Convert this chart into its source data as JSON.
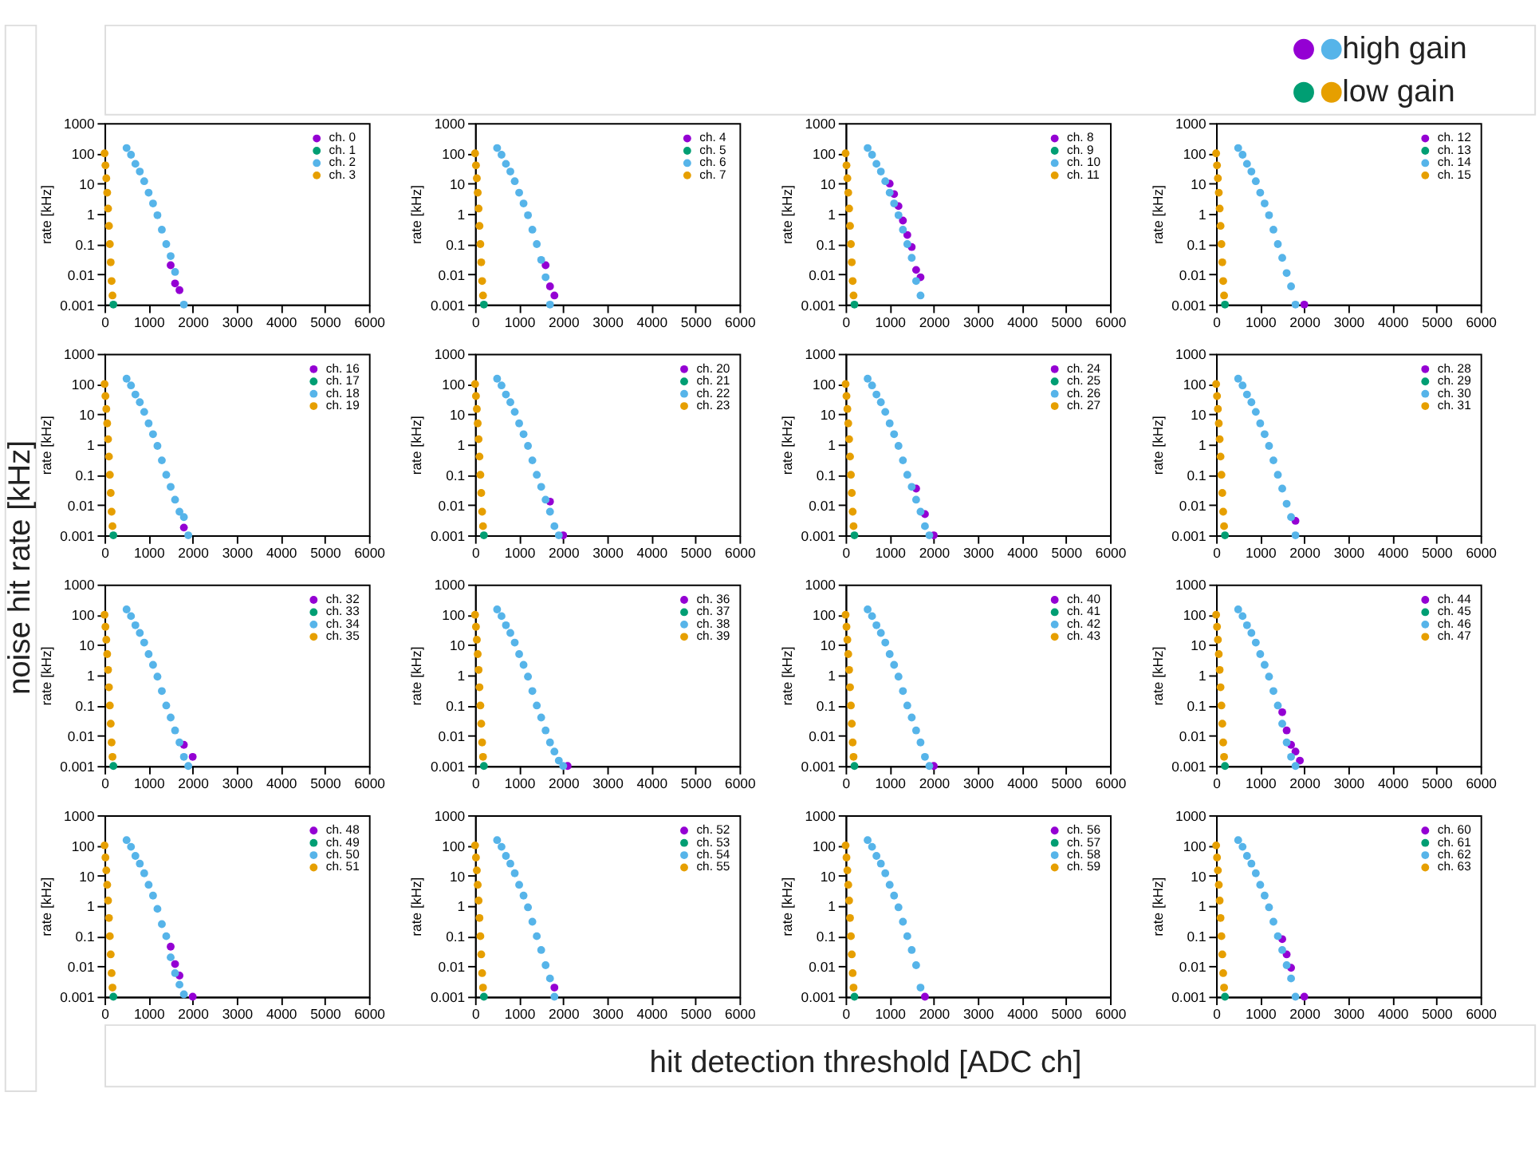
{
  "chart_data": [
    {
      "type": "scatter",
      "ylabel": "rate [kHz]",
      "annotations": [
        "high gain",
        "low gain",
        "noise hit rate [kHz]",
        "hit detection threshold [ADC ch]"
      ],
      "xlim": [
        0,
        6000
      ],
      "xticks": [
        0,
        1000,
        2000,
        3000,
        4000,
        5000,
        6000
      ],
      "ylim": [
        0.001,
        1000
      ],
      "yticks": [
        0.001,
        0.01,
        0.1,
        1,
        10,
        100,
        1000
      ],
      "log": true,
      "grid": false,
      "legend": "top right",
      "marker": "circle",
      "series": [
        {
          "name": "ch.  0",
          "color": "#9400d3",
          "x": [
            1500,
            1600,
            1700
          ],
          "values": [
            0.02,
            0.005,
            0.003
          ]
        },
        {
          "name": "ch.  1",
          "color": "#009e73",
          "x": [
            200
          ],
          "values": [
            0.001
          ]
        },
        {
          "name": "ch.  2",
          "color": "#56b4e9",
          "x": [
            500,
            600,
            700,
            800,
            900,
            1000,
            1100,
            1200,
            1300,
            1400,
            1500,
            1600,
            1800
          ],
          "values": [
            150,
            90,
            45,
            25,
            12,
            5,
            2.2,
            0.9,
            0.3,
            0.1,
            0.04,
            0.012,
            0.001
          ]
        },
        {
          "name": "ch.  3",
          "color": "#e69f00",
          "x": [
            0,
            20,
            40,
            60,
            80,
            100,
            120,
            140,
            160,
            180
          ],
          "values": [
            100,
            40,
            15,
            5,
            1.5,
            0.4,
            0.1,
            0.025,
            0.006,
            0.002
          ]
        }
      ]
    },
    {
      "type": "scatter",
      "ylabel": "rate [kHz]",
      "xlim": [
        0,
        6000
      ],
      "xticks": [
        0,
        1000,
        2000,
        3000,
        4000,
        5000,
        6000
      ],
      "ylim": [
        0.001,
        1000
      ],
      "yticks": [
        0.001,
        0.01,
        0.1,
        1,
        10,
        100,
        1000
      ],
      "log": true,
      "grid": false,
      "legend": "top right",
      "marker": "circle",
      "series": [
        {
          "name": "ch.  4",
          "color": "#9400d3",
          "x": [
            1600,
            1700,
            1800
          ],
          "values": [
            0.02,
            0.004,
            0.002
          ]
        },
        {
          "name": "ch.  5",
          "color": "#009e73",
          "x": [
            200
          ],
          "values": [
            0.001
          ]
        },
        {
          "name": "ch.  6",
          "color": "#56b4e9",
          "x": [
            500,
            600,
            700,
            800,
            900,
            1000,
            1100,
            1200,
            1300,
            1400,
            1500,
            1600,
            1700
          ],
          "values": [
            150,
            90,
            45,
            25,
            12,
            5,
            2.2,
            0.9,
            0.3,
            0.1,
            0.03,
            0.008,
            0.001
          ]
        },
        {
          "name": "ch.  7",
          "color": "#e69f00",
          "x": [
            0,
            20,
            40,
            60,
            80,
            100,
            120,
            140,
            160,
            180
          ],
          "values": [
            100,
            40,
            15,
            5,
            1.5,
            0.4,
            0.1,
            0.025,
            0.006,
            0.002
          ]
        }
      ]
    },
    {
      "type": "scatter",
      "ylabel": "rate [kHz]",
      "xlim": [
        0,
        6000
      ],
      "xticks": [
        0,
        1000,
        2000,
        3000,
        4000,
        5000,
        6000
      ],
      "ylim": [
        0.001,
        1000
      ],
      "yticks": [
        0.001,
        0.01,
        0.1,
        1,
        10,
        100,
        1000
      ],
      "log": true,
      "grid": false,
      "legend": "top right",
      "marker": "circle",
      "series": [
        {
          "name": "ch.  8",
          "color": "#9400d3",
          "x": [
            1000,
            1100,
            1200,
            1300,
            1400,
            1500,
            1600,
            1700
          ],
          "values": [
            10,
            4.5,
            1.8,
            0.6,
            0.2,
            0.08,
            0.014,
            0.008
          ]
        },
        {
          "name": "ch.  9",
          "color": "#009e73",
          "x": [
            200
          ],
          "values": [
            0.001
          ]
        },
        {
          "name": "ch. 10",
          "color": "#56b4e9",
          "x": [
            500,
            600,
            700,
            800,
            900,
            1000,
            1100,
            1200,
            1300,
            1400,
            1500,
            1600,
            1700
          ],
          "values": [
            150,
            90,
            45,
            25,
            12,
            5,
            2.2,
            0.9,
            0.3,
            0.1,
            0.035,
            0.006,
            0.002
          ]
        },
        {
          "name": "ch. 11",
          "color": "#e69f00",
          "x": [
            0,
            20,
            40,
            60,
            80,
            100,
            120,
            140,
            160,
            180
          ],
          "values": [
            100,
            40,
            15,
            5,
            1.5,
            0.4,
            0.1,
            0.025,
            0.006,
            0.002
          ]
        }
      ]
    },
    {
      "type": "scatter",
      "ylabel": "rate [kHz]",
      "xlim": [
        0,
        6000
      ],
      "xticks": [
        0,
        1000,
        2000,
        3000,
        4000,
        5000,
        6000
      ],
      "ylim": [
        0.001,
        1000
      ],
      "yticks": [
        0.001,
        0.01,
        0.1,
        1,
        10,
        100,
        1000
      ],
      "log": true,
      "grid": false,
      "legend": "top right",
      "marker": "circle",
      "series": [
        {
          "name": "ch. 12",
          "color": "#9400d3",
          "x": [
            2000
          ],
          "values": [
            0.001
          ]
        },
        {
          "name": "ch. 13",
          "color": "#009e73",
          "x": [
            200
          ],
          "values": [
            0.001
          ]
        },
        {
          "name": "ch. 14",
          "color": "#56b4e9",
          "x": [
            500,
            600,
            700,
            800,
            900,
            1000,
            1100,
            1200,
            1300,
            1400,
            1500,
            1600,
            1700,
            1800
          ],
          "values": [
            150,
            90,
            45,
            25,
            12,
            5,
            2.2,
            0.9,
            0.3,
            0.1,
            0.035,
            0.011,
            0.004,
            0.001
          ]
        },
        {
          "name": "ch. 15",
          "color": "#e69f00",
          "x": [
            0,
            20,
            40,
            60,
            80,
            100,
            120,
            140,
            160,
            180
          ],
          "values": [
            100,
            40,
            15,
            5,
            1.5,
            0.4,
            0.1,
            0.025,
            0.006,
            0.002
          ]
        }
      ]
    },
    {
      "type": "scatter",
      "ylabel": "rate [kHz]",
      "xlim": [
        0,
        6000
      ],
      "xticks": [
        0,
        1000,
        2000,
        3000,
        4000,
        5000,
        6000
      ],
      "ylim": [
        0.001,
        1000
      ],
      "yticks": [
        0.001,
        0.01,
        0.1,
        1,
        10,
        100,
        1000
      ],
      "log": true,
      "grid": false,
      "legend": "top right",
      "marker": "circle",
      "series": [
        {
          "name": "ch. 16",
          "color": "#9400d3",
          "x": [
            1800
          ],
          "values": [
            0.0018
          ]
        },
        {
          "name": "ch. 17",
          "color": "#009e73",
          "x": [
            200
          ],
          "values": [
            0.001
          ]
        },
        {
          "name": "ch. 18",
          "color": "#56b4e9",
          "x": [
            500,
            600,
            700,
            800,
            900,
            1000,
            1100,
            1200,
            1300,
            1400,
            1500,
            1600,
            1700,
            1800,
            1900
          ],
          "values": [
            150,
            90,
            45,
            25,
            12,
            5,
            2.2,
            0.9,
            0.3,
            0.1,
            0.04,
            0.015,
            0.006,
            0.004,
            0.001
          ]
        },
        {
          "name": "ch. 19",
          "color": "#e69f00",
          "x": [
            0,
            20,
            40,
            60,
            80,
            100,
            120,
            140,
            160,
            180
          ],
          "values": [
            100,
            40,
            15,
            5,
            1.5,
            0.4,
            0.1,
            0.025,
            0.006,
            0.002
          ]
        }
      ]
    },
    {
      "type": "scatter",
      "ylabel": "rate [kHz]",
      "xlim": [
        0,
        6000
      ],
      "xticks": [
        0,
        1000,
        2000,
        3000,
        4000,
        5000,
        6000
      ],
      "ylim": [
        0.001,
        1000
      ],
      "yticks": [
        0.001,
        0.01,
        0.1,
        1,
        10,
        100,
        1000
      ],
      "log": true,
      "grid": false,
      "legend": "top right",
      "marker": "circle",
      "series": [
        {
          "name": "ch. 20",
          "color": "#9400d3",
          "x": [
            1700,
            2000
          ],
          "values": [
            0.013,
            0.001
          ]
        },
        {
          "name": "ch. 21",
          "color": "#009e73",
          "x": [
            200
          ],
          "values": [
            0.001
          ]
        },
        {
          "name": "ch. 22",
          "color": "#56b4e9",
          "x": [
            500,
            600,
            700,
            800,
            900,
            1000,
            1100,
            1200,
            1300,
            1400,
            1500,
            1600,
            1700,
            1800,
            1900
          ],
          "values": [
            150,
            90,
            45,
            25,
            12,
            5,
            2.2,
            0.9,
            0.3,
            0.1,
            0.04,
            0.015,
            0.006,
            0.002,
            0.001
          ]
        },
        {
          "name": "ch. 23",
          "color": "#e69f00",
          "x": [
            0,
            20,
            40,
            60,
            80,
            100,
            120,
            140,
            160,
            180
          ],
          "values": [
            100,
            40,
            15,
            5,
            1.5,
            0.4,
            0.1,
            0.025,
            0.006,
            0.002
          ]
        }
      ]
    },
    {
      "type": "scatter",
      "ylabel": "rate [kHz]",
      "xlim": [
        0,
        6000
      ],
      "xticks": [
        0,
        1000,
        2000,
        3000,
        4000,
        5000,
        6000
      ],
      "ylim": [
        0.001,
        1000
      ],
      "yticks": [
        0.001,
        0.01,
        0.1,
        1,
        10,
        100,
        1000
      ],
      "log": true,
      "grid": false,
      "legend": "top right",
      "marker": "circle",
      "series": [
        {
          "name": "ch. 24",
          "color": "#9400d3",
          "x": [
            1600,
            1800,
            2000
          ],
          "values": [
            0.035,
            0.005,
            0.001
          ]
        },
        {
          "name": "ch. 25",
          "color": "#009e73",
          "x": [
            200
          ],
          "values": [
            0.001
          ]
        },
        {
          "name": "ch. 26",
          "color": "#56b4e9",
          "x": [
            500,
            600,
            700,
            800,
            900,
            1000,
            1100,
            1200,
            1300,
            1400,
            1500,
            1600,
            1700,
            1800,
            1900
          ],
          "values": [
            150,
            90,
            45,
            25,
            12,
            5,
            2.2,
            0.9,
            0.3,
            0.1,
            0.04,
            0.015,
            0.006,
            0.002,
            0.001
          ]
        },
        {
          "name": "ch. 27",
          "color": "#e69f00",
          "x": [
            0,
            20,
            40,
            60,
            80,
            100,
            120,
            140,
            160,
            180
          ],
          "values": [
            100,
            40,
            15,
            5,
            1.5,
            0.4,
            0.1,
            0.025,
            0.006,
            0.002
          ]
        }
      ]
    },
    {
      "type": "scatter",
      "ylabel": "rate [kHz]",
      "xlim": [
        0,
        6000
      ],
      "xticks": [
        0,
        1000,
        2000,
        3000,
        4000,
        5000,
        6000
      ],
      "ylim": [
        0.001,
        1000
      ],
      "yticks": [
        0.001,
        0.01,
        0.1,
        1,
        10,
        100,
        1000
      ],
      "log": true,
      "grid": false,
      "legend": "top right",
      "marker": "circle",
      "series": [
        {
          "name": "ch. 28",
          "color": "#9400d3",
          "x": [
            1800
          ],
          "values": [
            0.003
          ]
        },
        {
          "name": "ch. 29",
          "color": "#009e73",
          "x": [
            200
          ],
          "values": [
            0.001
          ]
        },
        {
          "name": "ch. 30",
          "color": "#56b4e9",
          "x": [
            500,
            600,
            700,
            800,
            900,
            1000,
            1100,
            1200,
            1300,
            1400,
            1500,
            1600,
            1700,
            1800
          ],
          "values": [
            150,
            90,
            45,
            25,
            12,
            5,
            2.2,
            0.9,
            0.3,
            0.1,
            0.035,
            0.011,
            0.004,
            0.001
          ]
        },
        {
          "name": "ch. 31",
          "color": "#e69f00",
          "x": [
            0,
            20,
            40,
            60,
            80,
            100,
            120,
            140,
            160,
            180
          ],
          "values": [
            100,
            40,
            15,
            5,
            1.5,
            0.4,
            0.1,
            0.025,
            0.006,
            0.002
          ]
        }
      ]
    },
    {
      "type": "scatter",
      "ylabel": "rate [kHz]",
      "xlim": [
        0,
        6000
      ],
      "xticks": [
        0,
        1000,
        2000,
        3000,
        4000,
        5000,
        6000
      ],
      "ylim": [
        0.001,
        1000
      ],
      "yticks": [
        0.001,
        0.01,
        0.1,
        1,
        10,
        100,
        1000
      ],
      "log": true,
      "grid": false,
      "legend": "top right",
      "marker": "circle",
      "series": [
        {
          "name": "ch. 32",
          "color": "#9400d3",
          "x": [
            1800,
            2000
          ],
          "values": [
            0.005,
            0.002
          ]
        },
        {
          "name": "ch. 33",
          "color": "#009e73",
          "x": [
            200
          ],
          "values": [
            0.001
          ]
        },
        {
          "name": "ch. 34",
          "color": "#56b4e9",
          "x": [
            500,
            600,
            700,
            800,
            900,
            1000,
            1100,
            1200,
            1300,
            1400,
            1500,
            1600,
            1700,
            1800,
            1900
          ],
          "values": [
            150,
            90,
            45,
            25,
            12,
            5,
            2.2,
            0.9,
            0.3,
            0.1,
            0.04,
            0.015,
            0.006,
            0.002,
            0.001
          ]
        },
        {
          "name": "ch. 35",
          "color": "#e69f00",
          "x": [
            0,
            20,
            40,
            60,
            80,
            100,
            120,
            140,
            160,
            180
          ],
          "values": [
            100,
            40,
            15,
            5,
            1.5,
            0.4,
            0.1,
            0.025,
            0.006,
            0.002
          ]
        }
      ]
    },
    {
      "type": "scatter",
      "ylabel": "rate [kHz]",
      "xlim": [
        0,
        6000
      ],
      "xticks": [
        0,
        1000,
        2000,
        3000,
        4000,
        5000,
        6000
      ],
      "ylim": [
        0.001,
        1000
      ],
      "yticks": [
        0.001,
        0.01,
        0.1,
        1,
        10,
        100,
        1000
      ],
      "log": true,
      "grid": false,
      "legend": "top right",
      "marker": "circle",
      "series": [
        {
          "name": "ch. 36",
          "color": "#9400d3",
          "x": [
            2100
          ],
          "values": [
            0.001
          ]
        },
        {
          "name": "ch. 37",
          "color": "#009e73",
          "x": [
            200
          ],
          "values": [
            0.001
          ]
        },
        {
          "name": "ch. 38",
          "color": "#56b4e9",
          "x": [
            500,
            600,
            700,
            800,
            900,
            1000,
            1100,
            1200,
            1300,
            1400,
            1500,
            1600,
            1700,
            1800,
            1900,
            2000
          ],
          "values": [
            150,
            90,
            45,
            25,
            12,
            5,
            2.2,
            0.9,
            0.3,
            0.1,
            0.04,
            0.015,
            0.006,
            0.003,
            0.0015,
            0.001
          ]
        },
        {
          "name": "ch. 39",
          "color": "#e69f00",
          "x": [
            0,
            20,
            40,
            60,
            80,
            100,
            120,
            140,
            160,
            180
          ],
          "values": [
            100,
            40,
            15,
            5,
            1.5,
            0.4,
            0.1,
            0.025,
            0.006,
            0.002
          ]
        }
      ]
    },
    {
      "type": "scatter",
      "ylabel": "rate [kHz]",
      "xlim": [
        0,
        6000
      ],
      "xticks": [
        0,
        1000,
        2000,
        3000,
        4000,
        5000,
        6000
      ],
      "ylim": [
        0.001,
        1000
      ],
      "yticks": [
        0.001,
        0.01,
        0.1,
        1,
        10,
        100,
        1000
      ],
      "log": true,
      "grid": false,
      "legend": "top right",
      "marker": "circle",
      "series": [
        {
          "name": "ch. 40",
          "color": "#9400d3",
          "x": [
            2000
          ],
          "values": [
            0.001
          ]
        },
        {
          "name": "ch. 41",
          "color": "#009e73",
          "x": [
            200
          ],
          "values": [
            0.001
          ]
        },
        {
          "name": "ch. 42",
          "color": "#56b4e9",
          "x": [
            500,
            600,
            700,
            800,
            900,
            1000,
            1100,
            1200,
            1300,
            1400,
            1500,
            1600,
            1700,
            1800,
            1900
          ],
          "values": [
            150,
            90,
            45,
            25,
            12,
            5,
            2.2,
            0.9,
            0.3,
            0.1,
            0.04,
            0.015,
            0.006,
            0.002,
            0.001
          ]
        },
        {
          "name": "ch. 43",
          "color": "#e69f00",
          "x": [
            0,
            20,
            40,
            60,
            80,
            100,
            120,
            140,
            160,
            180
          ],
          "values": [
            100,
            40,
            15,
            5,
            1.5,
            0.4,
            0.1,
            0.025,
            0.006,
            0.002
          ]
        }
      ]
    },
    {
      "type": "scatter",
      "ylabel": "rate [kHz]",
      "xlim": [
        0,
        6000
      ],
      "xticks": [
        0,
        1000,
        2000,
        3000,
        4000,
        5000,
        6000
      ],
      "ylim": [
        0.001,
        1000
      ],
      "yticks": [
        0.001,
        0.01,
        0.1,
        1,
        10,
        100,
        1000
      ],
      "log": true,
      "grid": false,
      "legend": "top right",
      "marker": "circle",
      "series": [
        {
          "name": "ch. 44",
          "color": "#9400d3",
          "x": [
            1500,
            1600,
            1700,
            1800,
            1900
          ],
          "values": [
            0.06,
            0.015,
            0.005,
            0.003,
            0.0015
          ]
        },
        {
          "name": "ch. 45",
          "color": "#009e73",
          "x": [
            200
          ],
          "values": [
            0.001
          ]
        },
        {
          "name": "ch. 46",
          "color": "#56b4e9",
          "x": [
            500,
            600,
            700,
            800,
            900,
            1000,
            1100,
            1200,
            1300,
            1400,
            1500,
            1600,
            1700,
            1800
          ],
          "values": [
            150,
            90,
            45,
            25,
            12,
            5,
            2.2,
            0.9,
            0.3,
            0.1,
            0.025,
            0.006,
            0.002,
            0.001
          ]
        },
        {
          "name": "ch. 47",
          "color": "#e69f00",
          "x": [
            0,
            20,
            40,
            60,
            80,
            100,
            120,
            140,
            160,
            180
          ],
          "values": [
            100,
            40,
            15,
            5,
            1.5,
            0.4,
            0.1,
            0.025,
            0.006,
            0.002
          ]
        }
      ]
    },
    {
      "type": "scatter",
      "ylabel": "rate [kHz]",
      "xlim": [
        0,
        6000
      ],
      "xticks": [
        0,
        1000,
        2000,
        3000,
        4000,
        5000,
        6000
      ],
      "ylim": [
        0.001,
        1000
      ],
      "yticks": [
        0.001,
        0.01,
        0.1,
        1,
        10,
        100,
        1000
      ],
      "log": true,
      "grid": false,
      "legend": "top right",
      "marker": "circle",
      "series": [
        {
          "name": "ch. 48",
          "color": "#9400d3",
          "x": [
            1500,
            1600,
            1700,
            2000
          ],
          "values": [
            0.045,
            0.012,
            0.005,
            0.001
          ]
        },
        {
          "name": "ch. 49",
          "color": "#009e73",
          "x": [
            200
          ],
          "values": [
            0.001
          ]
        },
        {
          "name": "ch. 50",
          "color": "#56b4e9",
          "x": [
            500,
            600,
            700,
            800,
            900,
            1000,
            1100,
            1200,
            1300,
            1400,
            1500,
            1600,
            1700,
            1800
          ],
          "values": [
            150,
            90,
            45,
            25,
            12,
            5,
            2.2,
            0.8,
            0.25,
            0.1,
            0.02,
            0.006,
            0.0025,
            0.0012
          ]
        },
        {
          "name": "ch. 51",
          "color": "#e69f00",
          "x": [
            0,
            20,
            40,
            60,
            80,
            100,
            120,
            140,
            160,
            180
          ],
          "values": [
            100,
            40,
            15,
            5,
            1.5,
            0.4,
            0.1,
            0.025,
            0.006,
            0.002
          ]
        }
      ]
    },
    {
      "type": "scatter",
      "ylabel": "rate [kHz]",
      "xlim": [
        0,
        6000
      ],
      "xticks": [
        0,
        1000,
        2000,
        3000,
        4000,
        5000,
        6000
      ],
      "ylim": [
        0.001,
        1000
      ],
      "yticks": [
        0.001,
        0.01,
        0.1,
        1,
        10,
        100,
        1000
      ],
      "log": true,
      "grid": false,
      "legend": "top right",
      "marker": "circle",
      "series": [
        {
          "name": "ch. 52",
          "color": "#9400d3",
          "x": [
            1800
          ],
          "values": [
            0.002
          ]
        },
        {
          "name": "ch. 53",
          "color": "#009e73",
          "x": [
            200
          ],
          "values": [
            0.001
          ]
        },
        {
          "name": "ch. 54",
          "color": "#56b4e9",
          "x": [
            500,
            600,
            700,
            800,
            900,
            1000,
            1100,
            1200,
            1300,
            1400,
            1500,
            1600,
            1700,
            1800
          ],
          "values": [
            150,
            90,
            45,
            25,
            12,
            5,
            2.2,
            0.9,
            0.3,
            0.1,
            0.035,
            0.011,
            0.004,
            0.001
          ]
        },
        {
          "name": "ch. 55",
          "color": "#e69f00",
          "x": [
            0,
            20,
            40,
            60,
            80,
            100,
            120,
            140,
            160,
            180
          ],
          "values": [
            100,
            40,
            15,
            5,
            1.5,
            0.4,
            0.1,
            0.025,
            0.006,
            0.002
          ]
        }
      ]
    },
    {
      "type": "scatter",
      "ylabel": "rate [kHz]",
      "xlim": [
        0,
        6000
      ],
      "xticks": [
        0,
        1000,
        2000,
        3000,
        4000,
        5000,
        6000
      ],
      "ylim": [
        0.001,
        1000
      ],
      "yticks": [
        0.001,
        0.01,
        0.1,
        1,
        10,
        100,
        1000
      ],
      "log": true,
      "grid": false,
      "legend": "top right",
      "marker": "circle",
      "series": [
        {
          "name": "ch. 56",
          "color": "#9400d3",
          "x": [
            1800
          ],
          "values": [
            0.001
          ]
        },
        {
          "name": "ch. 57",
          "color": "#009e73",
          "x": [
            200
          ],
          "values": [
            0.001
          ]
        },
        {
          "name": "ch. 58",
          "color": "#56b4e9",
          "x": [
            500,
            600,
            700,
            800,
            900,
            1000,
            1100,
            1200,
            1300,
            1400,
            1500,
            1600,
            1700
          ],
          "values": [
            150,
            90,
            45,
            25,
            12,
            5,
            2.2,
            0.9,
            0.3,
            0.1,
            0.035,
            0.011,
            0.002
          ]
        },
        {
          "name": "ch. 59",
          "color": "#e69f00",
          "x": [
            0,
            20,
            40,
            60,
            80,
            100,
            120,
            140,
            160,
            180
          ],
          "values": [
            100,
            40,
            15,
            5,
            1.5,
            0.4,
            0.1,
            0.025,
            0.006,
            0.002
          ]
        }
      ]
    },
    {
      "type": "scatter",
      "ylabel": "rate [kHz]",
      "xlim": [
        0,
        6000
      ],
      "xticks": [
        0,
        1000,
        2000,
        3000,
        4000,
        5000,
        6000
      ],
      "ylim": [
        0.001,
        1000
      ],
      "yticks": [
        0.001,
        0.01,
        0.1,
        1,
        10,
        100,
        1000
      ],
      "log": true,
      "grid": false,
      "legend": "top right",
      "marker": "circle",
      "series": [
        {
          "name": "ch. 60",
          "color": "#9400d3",
          "x": [
            1500,
            1600,
            1700,
            2000
          ],
          "values": [
            0.08,
            0.025,
            0.009,
            0.001
          ]
        },
        {
          "name": "ch. 61",
          "color": "#009e73",
          "x": [
            200
          ],
          "values": [
            0.001
          ]
        },
        {
          "name": "ch. 62",
          "color": "#56b4e9",
          "x": [
            500,
            600,
            700,
            800,
            900,
            1000,
            1100,
            1200,
            1300,
            1400,
            1500,
            1600,
            1700,
            1800
          ],
          "values": [
            150,
            90,
            45,
            25,
            12,
            5,
            2.2,
            0.9,
            0.3,
            0.1,
            0.035,
            0.011,
            0.004,
            0.001
          ]
        },
        {
          "name": "ch. 63",
          "color": "#e69f00",
          "x": [
            0,
            20,
            40,
            60,
            80,
            100,
            120,
            140,
            160,
            180
          ],
          "values": [
            100,
            40,
            15,
            5,
            1.5,
            0.4,
            0.1,
            0.025,
            0.006,
            0.002
          ]
        }
      ]
    }
  ]
}
